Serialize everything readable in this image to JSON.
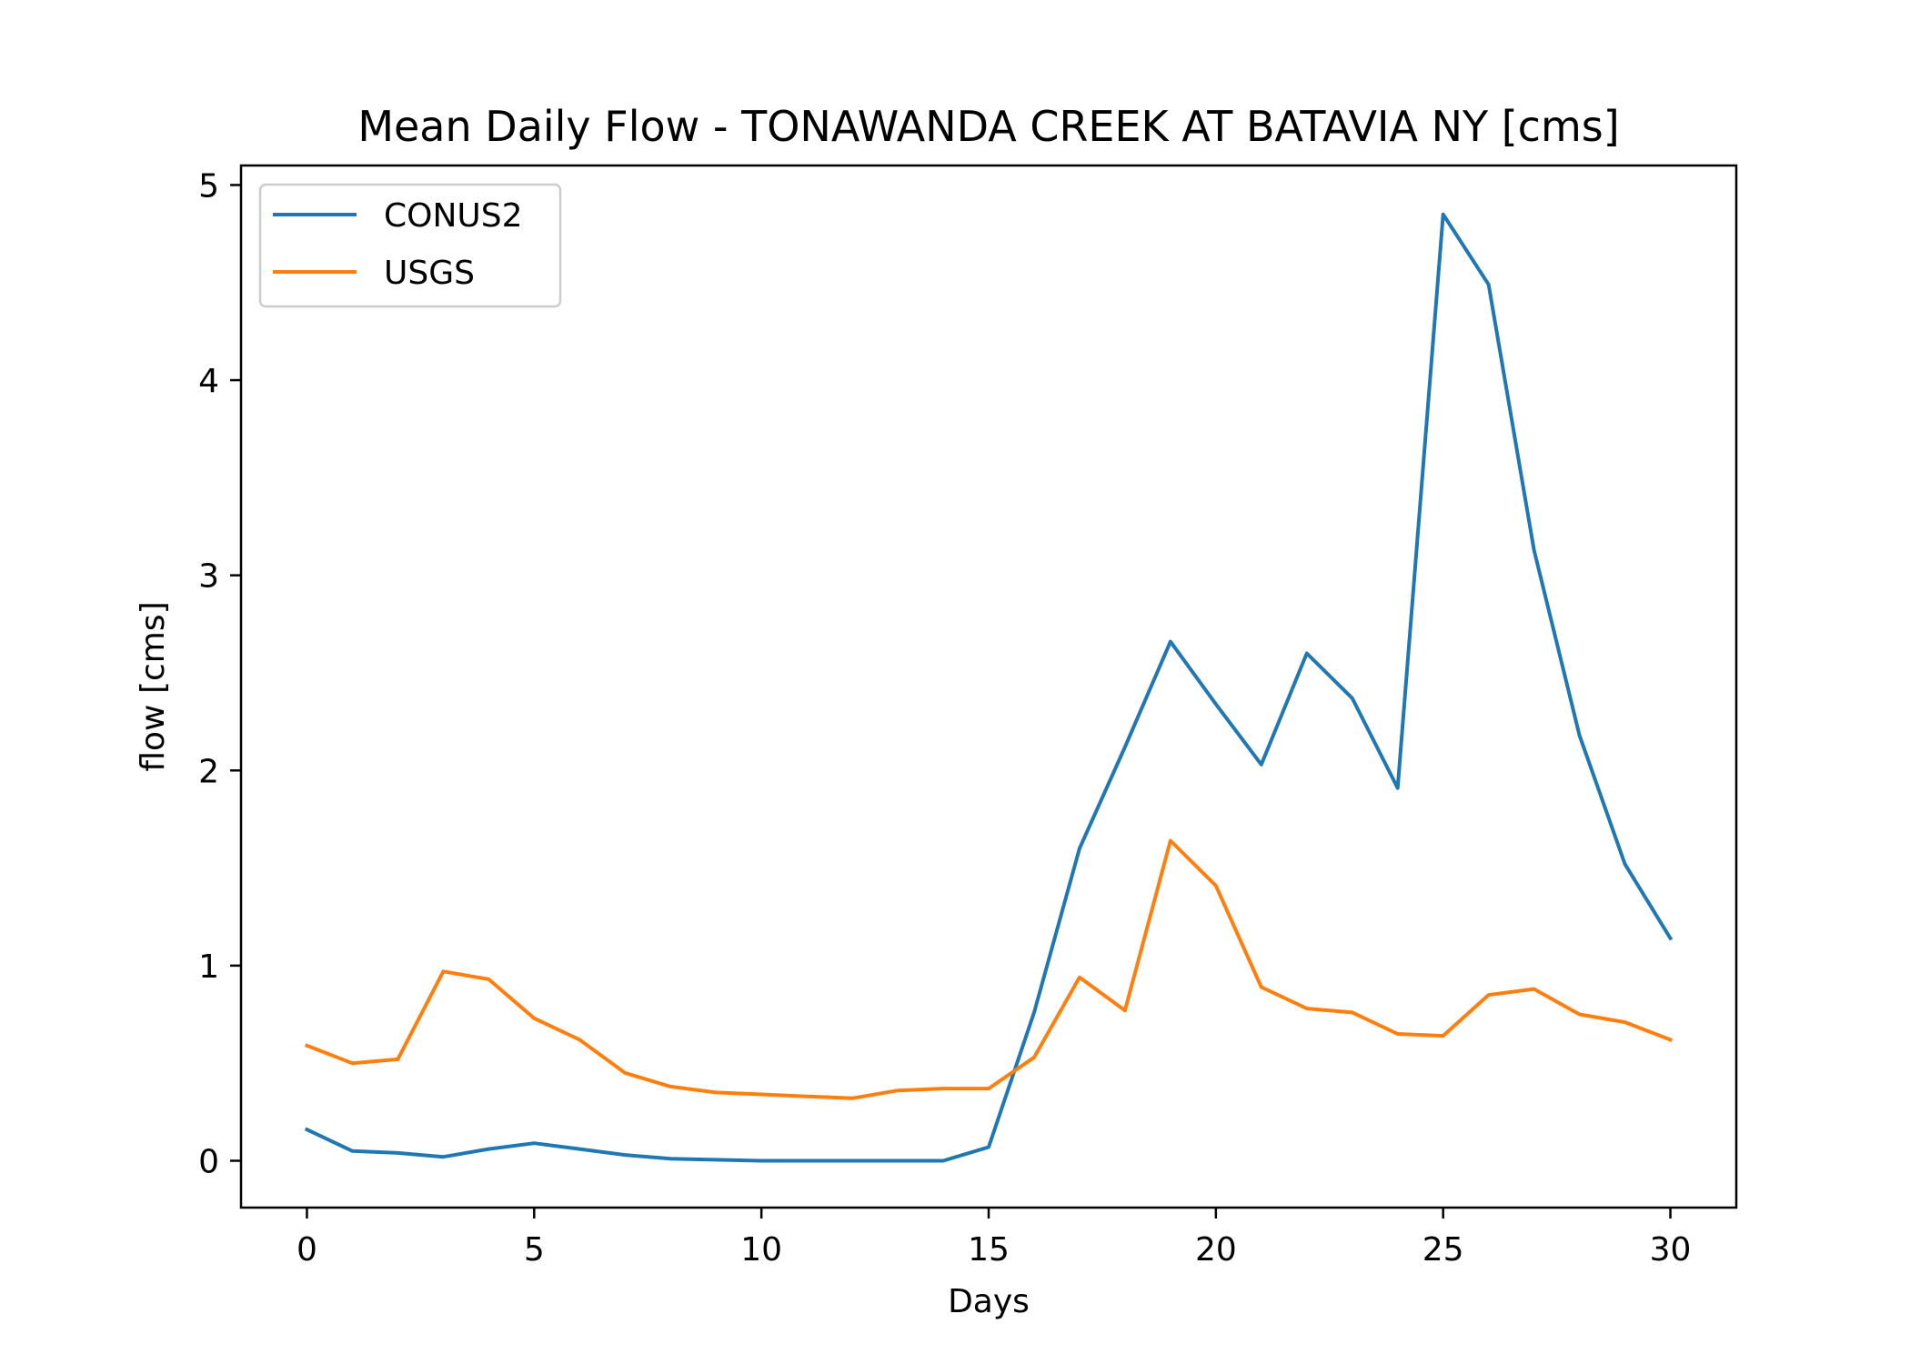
{
  "chart_data": {
    "type": "line",
    "title": "Mean Daily Flow - TONAWANDA CREEK AT BATAVIA NY [cms]",
    "xlabel": "Days",
    "ylabel": "flow [cms]",
    "xlim": [
      -1.45,
      31.45
    ],
    "ylim": [
      -0.24,
      5.1
    ],
    "xticks": [
      0,
      5,
      10,
      15,
      20,
      25,
      30
    ],
    "yticks": [
      0,
      1,
      2,
      3,
      4,
      5
    ],
    "grid": false,
    "legend_position": "upper-left",
    "x": [
      0,
      1,
      2,
      3,
      4,
      5,
      6,
      7,
      8,
      9,
      10,
      11,
      12,
      13,
      14,
      15,
      16,
      17,
      18,
      19,
      20,
      21,
      22,
      23,
      24,
      25,
      26,
      27,
      28,
      29,
      30
    ],
    "series": [
      {
        "name": "CONUS2",
        "color": "#1f77b4",
        "values": [
          0.16,
          0.05,
          0.04,
          0.02,
          0.06,
          0.09,
          0.06,
          0.03,
          0.01,
          0.005,
          0.0,
          0.0,
          0.0,
          0.0,
          0.0,
          0.07,
          0.76,
          1.6,
          2.12,
          2.66,
          2.34,
          2.03,
          2.6,
          2.37,
          1.91,
          4.85,
          4.49,
          3.13,
          2.18,
          1.52,
          1.14
        ]
      },
      {
        "name": "USGS",
        "color": "#ff7f0e",
        "values": [
          0.59,
          0.5,
          0.52,
          0.97,
          0.93,
          0.73,
          0.62,
          0.45,
          0.38,
          0.35,
          0.34,
          0.33,
          0.32,
          0.36,
          0.37,
          0.37,
          0.53,
          0.94,
          0.77,
          1.64,
          1.41,
          0.89,
          0.78,
          0.76,
          0.65,
          0.64,
          0.85,
          0.88,
          0.75,
          0.71,
          0.62
        ]
      }
    ]
  }
}
